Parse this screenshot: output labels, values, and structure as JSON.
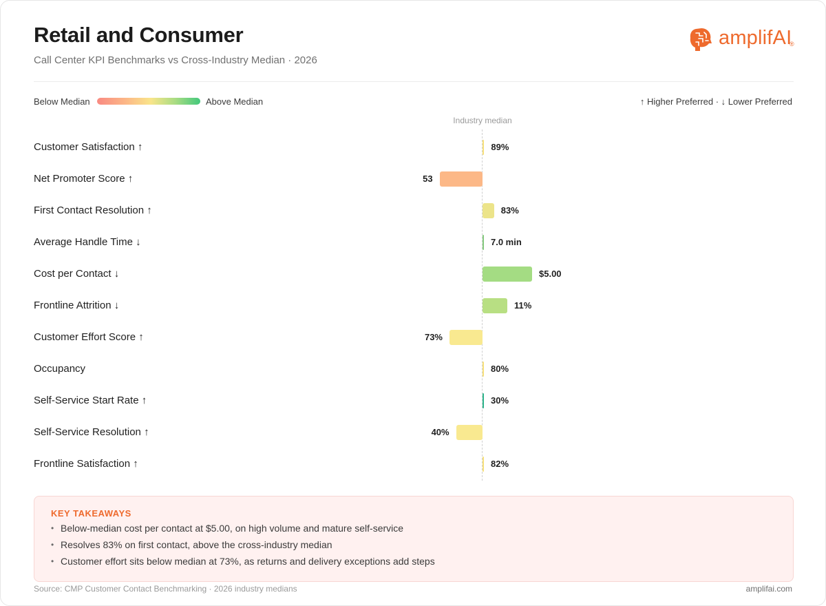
{
  "header": {
    "title": "Retail and Consumer",
    "subtitle": "Call Center KPI Benchmarks vs Cross-Industry Median · 2026"
  },
  "logo": {
    "icon": "brain-icon",
    "text": "amplifAI",
    "registered": "®",
    "color": "#ee6a2d"
  },
  "legend": {
    "below_label": "Below Median",
    "above_label": "Above Median",
    "preference_note": "↑ Higher Preferred · ↓ Lower Preferred",
    "gradient_colors": [
      "#f98a82",
      "#fcb887",
      "#f9e58a",
      "#a8dc83",
      "#43c87c"
    ]
  },
  "chart_data": {
    "type": "bar",
    "orientation": "horizontal",
    "baseline_label": "Industry median",
    "categories": [
      "Customer Satisfaction ↑",
      "Net Promoter Score ↑",
      "First Contact Resolution ↑",
      "Average Handle Time ↓",
      "Cost per Contact ↓",
      "Frontline Attrition ↓",
      "Customer Effort Score ↑",
      "Occupancy",
      "Self-Service Start Rate ↑",
      "Self-Service Resolution ↑",
      "Frontline Satisfaction ↑"
    ],
    "value_labels": [
      "89%",
      "53",
      "83%",
      "7.0 min",
      "$5.00",
      "11%",
      "73%",
      "80%",
      "30%",
      "40%",
      "82%"
    ],
    "relative_to_median": [
      0.01,
      -0.26,
      0.07,
      0.005,
      0.3,
      0.15,
      -0.2,
      0.005,
      0.005,
      -0.16,
      0.005
    ],
    "colors": [
      "#f7e07a",
      "#fcb887",
      "#ece48a",
      "#84c97e",
      "#a4dc83",
      "#b8df83",
      "#f9e990",
      "#f7e07a",
      "#2bb38a",
      "#f9e990",
      "#f7e07a"
    ],
    "xlim": [
      -1,
      1
    ]
  },
  "takeaways": {
    "heading": "KEY TAKEAWAYS",
    "items": [
      "Below-median cost per contact at $5.00, on high volume and mature self-service",
      "Resolves 83% on first contact, above the cross-industry median",
      "Customer effort sits below median at 73%, as returns and delivery exceptions add steps"
    ],
    "background": "#fff1f0"
  },
  "footer": {
    "source": "Source: CMP Customer Contact Benchmarking · 2026 industry medians",
    "site": "amplifai.com"
  }
}
